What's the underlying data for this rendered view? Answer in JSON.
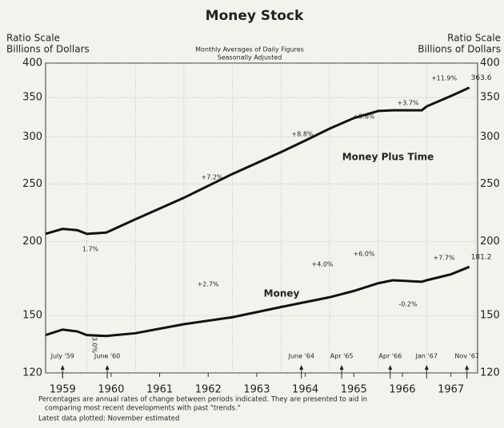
{
  "chart_data": {
    "type": "line",
    "title": "Money Stock",
    "subtitle": [
      "Monthly Averages of Daily Figures",
      "Seasonally Adjusted"
    ],
    "y_label": [
      "Ratio Scale",
      "Billions of Dollars"
    ],
    "y2_label": [
      "Ratio Scale",
      "Billions of Dollars"
    ],
    "log_scale": true,
    "grid": true,
    "xlim": [
      1959.15,
      1968.05
    ],
    "xticks": [
      {
        "value": 1959.5,
        "label": "1959"
      },
      {
        "value": 1960.5,
        "label": "1960"
      },
      {
        "value": 1961.5,
        "label": "1961"
      },
      {
        "value": 1962.5,
        "label": "1962"
      },
      {
        "value": 1963.5,
        "label": "1963"
      },
      {
        "value": 1964.5,
        "label": "1964"
      },
      {
        "value": 1965.5,
        "label": "1965"
      },
      {
        "value": 1966.5,
        "label": "1966"
      },
      {
        "value": 1967.5,
        "label": "1967"
      }
    ],
    "ylim": [
      120,
      400
    ],
    "yticks": [
      120,
      150,
      200,
      250,
      300,
      350,
      400
    ],
    "x": [
      1959.15,
      1959.5,
      1959.8,
      1960.0,
      1960.4,
      1961.0,
      1962.0,
      1963.0,
      1964.0,
      1964.5,
      1965.0,
      1965.5,
      1966.0,
      1966.3,
      1966.9,
      1967.0,
      1967.5,
      1967.88
    ],
    "series": [
      {
        "name": "Money Plus Time",
        "color": "#111111",
        "values": [
          206,
          210,
          209,
          206,
          207,
          218,
          237,
          260,
          283,
          296,
          310,
          323,
          332,
          333,
          333,
          338,
          352,
          363.6
        ]
      },
      {
        "name": "Money",
        "color": "#111111",
        "values": [
          139,
          142,
          141,
          139,
          138.5,
          140,
          145,
          149,
          155,
          158,
          161,
          165,
          170,
          172,
          171,
          172,
          176,
          181.2
        ]
      }
    ],
    "annotations": [
      "+7.2%",
      "1.7%",
      "+8.8%",
      "+9.6%",
      "+3.7%",
      "+11.9%",
      "+2.7%",
      "+4.0%",
      "+6.0%",
      "-0.2%",
      "+7.7%",
      "3.0%"
    ],
    "markers": [
      {
        "label": "July '59",
        "x": 1959.5
      },
      {
        "label": "June '60",
        "x": 1960.42
      },
      {
        "label": "June '64",
        "x": 1964.42
      },
      {
        "label": "Apr '65",
        "x": 1965.25
      },
      {
        "label": "Apr '66",
        "x": 1966.25
      },
      {
        "label": "Jan '67",
        "x": 1967.0
      },
      {
        "label": "Nov '67",
        "x": 1967.83
      }
    ],
    "footnotes": [
      "Percentages are annual rates of change between periods indicated. They are presented to aid in",
      "comparing most recent developments with past \"trends.\"",
      "Latest data plotted: November estimated"
    ]
  }
}
